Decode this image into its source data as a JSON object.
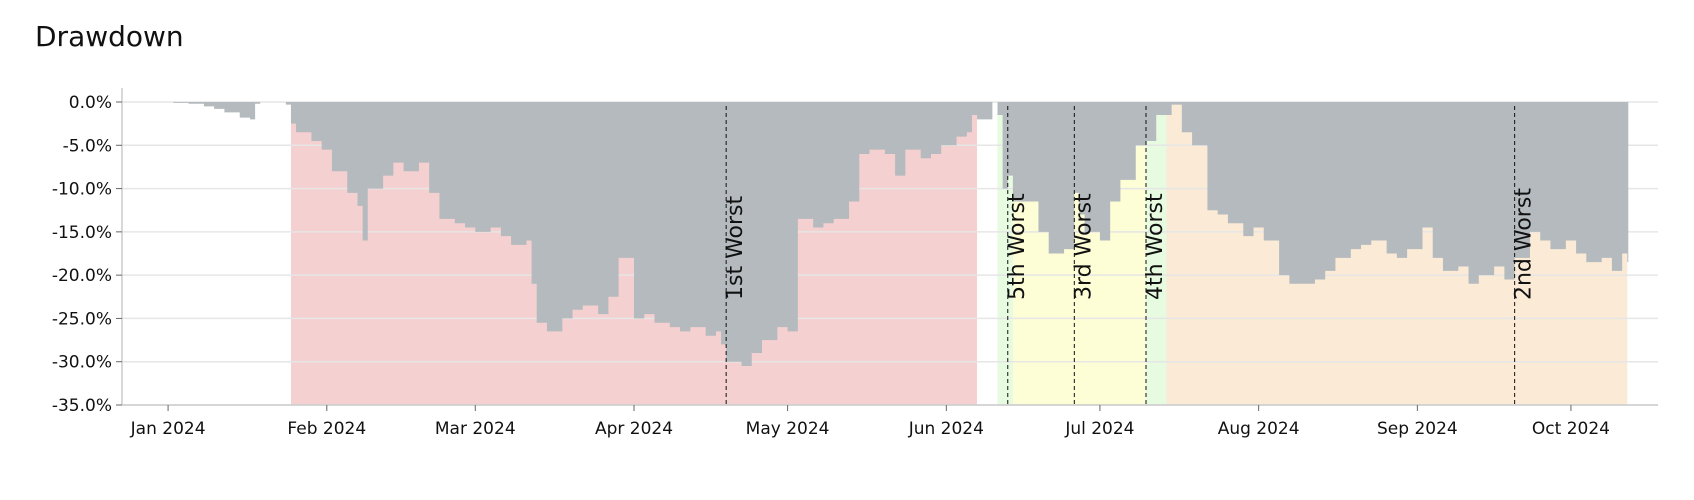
{
  "title": "Drawdown",
  "chart_data": {
    "type": "area",
    "title": "Drawdown",
    "xlabel": "",
    "ylabel": "",
    "x_range": [
      "2023-12-23",
      "2024-10-18"
    ],
    "ylim": [
      -35,
      0
    ],
    "grid": true,
    "y_ticks": [
      0,
      -5,
      -10,
      -15,
      -20,
      -25,
      -30,
      -35
    ],
    "y_tick_labels": [
      "0.0%",
      "-5.0%",
      "-10.0%",
      "-15.0%",
      "-20.0%",
      "-25.0%",
      "-30.0%",
      "-35.0%"
    ],
    "x_ticks": [
      "2024-01-01",
      "2024-02-01",
      "2024-03-01",
      "2024-04-01",
      "2024-05-01",
      "2024-06-01",
      "2024-07-01",
      "2024-08-01",
      "2024-09-01",
      "2024-10-01"
    ],
    "x_tick_labels": [
      "Jan 2024",
      "Feb 2024",
      "Mar 2024",
      "Apr 2024",
      "May 2024",
      "Jun 2024",
      "Jul 2024",
      "Aug 2024",
      "Sep 2024",
      "Oct 2024"
    ],
    "colors": {
      "fill": "#b4babd",
      "grid": "#e6e6e6",
      "axis": "#cccccc"
    },
    "series": [
      {
        "x": [
          "2024-01-02",
          "2024-01-05",
          "2024-01-08",
          "2024-01-10",
          "2024-01-12",
          "2024-01-15",
          "2024-01-17",
          "2024-01-18",
          "2024-01-19",
          "2024-01-22",
          "2024-01-24",
          "2024-01-25",
          "2024-01-26",
          "2024-01-29",
          "2024-01-31",
          "2024-02-02",
          "2024-02-05",
          "2024-02-07",
          "2024-02-08",
          "2024-02-09",
          "2024-02-12",
          "2024-02-14",
          "2024-02-16",
          "2024-02-19",
          "2024-02-21",
          "2024-02-23",
          "2024-02-26",
          "2024-02-28",
          "2024-03-01",
          "2024-03-04",
          "2024-03-06",
          "2024-03-08",
          "2024-03-11",
          "2024-03-12",
          "2024-03-13",
          "2024-03-15",
          "2024-03-18",
          "2024-03-20",
          "2024-03-22",
          "2024-03-25",
          "2024-03-27",
          "2024-03-29",
          "2024-04-01",
          "2024-04-03",
          "2024-04-05",
          "2024-04-08",
          "2024-04-10",
          "2024-04-12",
          "2024-04-15",
          "2024-04-17",
          "2024-04-18",
          "2024-04-19",
          "2024-04-22",
          "2024-04-24",
          "2024-04-26",
          "2024-04-29",
          "2024-05-01",
          "2024-05-03",
          "2024-05-06",
          "2024-05-08",
          "2024-05-10",
          "2024-05-13",
          "2024-05-15",
          "2024-05-17",
          "2024-05-20",
          "2024-05-22",
          "2024-05-24",
          "2024-05-27",
          "2024-05-29",
          "2024-05-31",
          "2024-06-03",
          "2024-06-05",
          "2024-06-06",
          "2024-06-07",
          "2024-06-10",
          "2024-06-11",
          "2024-06-12",
          "2024-06-13",
          "2024-06-14",
          "2024-06-17",
          "2024-06-19",
          "2024-06-21",
          "2024-06-24",
          "2024-06-26",
          "2024-06-27",
          "2024-06-28",
          "2024-07-01",
          "2024-07-03",
          "2024-07-05",
          "2024-07-08",
          "2024-07-10",
          "2024-07-12",
          "2024-07-15",
          "2024-07-17",
          "2024-07-19",
          "2024-07-22",
          "2024-07-24",
          "2024-07-26",
          "2024-07-29",
          "2024-07-31",
          "2024-08-02",
          "2024-08-05",
          "2024-08-07",
          "2024-08-09",
          "2024-08-12",
          "2024-08-14",
          "2024-08-16",
          "2024-08-19",
          "2024-08-21",
          "2024-08-23",
          "2024-08-26",
          "2024-08-28",
          "2024-08-30",
          "2024-09-02",
          "2024-09-04",
          "2024-09-06",
          "2024-09-09",
          "2024-09-11",
          "2024-09-13",
          "2024-09-16",
          "2024-09-18",
          "2024-09-20",
          "2024-09-23",
          "2024-09-25",
          "2024-09-27",
          "2024-09-30",
          "2024-10-02",
          "2024-10-04",
          "2024-10-07",
          "2024-10-09",
          "2024-10-11",
          "2024-10-12"
        ],
        "y": [
          -0.1,
          -0.2,
          -0.5,
          -0.8,
          -1.2,
          -1.8,
          -2.0,
          -0.2,
          0,
          0,
          -0.3,
          -2.5,
          -3.5,
          -4.5,
          -5.5,
          -8.0,
          -10.5,
          -12.0,
          -16.0,
          -10.0,
          -8.5,
          -7.0,
          -8.0,
          -7.0,
          -10.5,
          -13.5,
          -14.0,
          -14.5,
          -15.0,
          -14.5,
          -15.5,
          -16.5,
          -16.0,
          -21.0,
          -25.5,
          -26.5,
          -25.0,
          -24.0,
          -23.5,
          -24.5,
          -22.5,
          -18.0,
          -25.0,
          -24.5,
          -25.5,
          -26.0,
          -26.5,
          -26.0,
          -27.0,
          -26.5,
          -28.0,
          -30.0,
          -30.5,
          -29.0,
          -27.5,
          -26.0,
          -26.5,
          -13.5,
          -14.5,
          -14.0,
          -13.5,
          -11.5,
          -6.0,
          -5.5,
          -6.0,
          -8.5,
          -5.5,
          -6.5,
          -6.0,
          -5.0,
          -4.0,
          -3.5,
          -1.5,
          -2.0,
          0,
          -1.5,
          -10.0,
          -8.5,
          -11.5,
          -11.5,
          -15.0,
          -17.5,
          -17.0,
          -10.5,
          -13.0,
          -15.0,
          -16.0,
          -11.5,
          -9.0,
          -5.0,
          -4.5,
          -1.5,
          -0.3,
          -3.5,
          -5.0,
          -12.5,
          -13.0,
          -14.0,
          -15.5,
          -14.5,
          -16.0,
          -20.0,
          -21.0,
          -21.0,
          -20.5,
          -19.5,
          -18.0,
          -17.0,
          -16.5,
          -16.0,
          -17.5,
          -18.0,
          -17.0,
          -14.5,
          -18.0,
          -19.5,
          -19.0,
          -21.0,
          -20.0,
          -19.0,
          -20.5,
          -18.0,
          -15.0,
          -16.0,
          -17.0,
          -16.0,
          -17.5,
          -18.5,
          -18.0,
          -19.5,
          -17.5,
          -18.5
        ]
      }
    ],
    "periods": [
      {
        "label": "1st Worst",
        "start": "2024-01-25",
        "trough": "2024-04-19",
        "end": "2024-06-07",
        "color": "#f5d0d0"
      },
      {
        "label": "2nd Worst",
        "start": "2024-07-14",
        "trough": "2024-09-20",
        "end": "2024-10-12",
        "color": "#faead6"
      },
      {
        "label": "3rd Worst",
        "start": "2024-06-14",
        "trough": "2024-06-26",
        "end": "2024-07-10",
        "color": "#fdfdd6"
      },
      {
        "label": "4th Worst",
        "start": "2024-07-10",
        "trough": "2024-07-10",
        "end": "2024-07-14",
        "color": "#e6fbdf"
      },
      {
        "label": "5th Worst",
        "start": "2024-06-11",
        "trough": "2024-06-13",
        "end": "2024-06-14",
        "color": "#e6fbdf"
      }
    ]
  }
}
